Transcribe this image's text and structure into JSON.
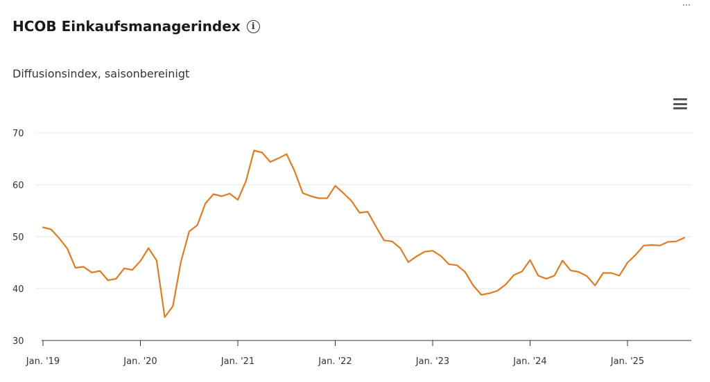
{
  "header": {
    "title": "HCOB Einkaufsmanagerindex",
    "info_icon": "info-icon",
    "subtitle": "Diffusionsindex, saisonbereinigt",
    "menu_icon": "hamburger-menu-icon"
  },
  "chart_data": {
    "type": "line",
    "title": "HCOB Einkaufsmanagerindex",
    "subtitle": "Diffusionsindex, saisonbereinigt",
    "xlabel": "",
    "ylabel": "",
    "ylim": [
      30,
      70
    ],
    "yticks": [
      30,
      40,
      50,
      60,
      70
    ],
    "xticks": [
      "Jan. '19",
      "Jan. '20",
      "Jan. '21",
      "Jan. '22",
      "Jan. '23",
      "Jan. '24",
      "Jan. '25"
    ],
    "grid": true,
    "legend": "none",
    "x_start": "2019-01",
    "series": [
      {
        "color": "#e07b24",
        "values": [
          51.8,
          51.4,
          49.7,
          47.7,
          44.0,
          44.2,
          43.1,
          43.4,
          41.6,
          41.9,
          43.9,
          43.6,
          45.3,
          47.8,
          45.4,
          34.5,
          36.6,
          45.2,
          51.0,
          52.2,
          56.4,
          58.2,
          57.8,
          58.3,
          57.1,
          60.7,
          66.6,
          66.2,
          64.4,
          65.1,
          65.9,
          62.6,
          58.4,
          57.8,
          57.4,
          57.4,
          59.8,
          58.4,
          56.9,
          54.6,
          54.8,
          52.0,
          49.3,
          49.1,
          47.8,
          45.1,
          46.2,
          47.1,
          47.3,
          46.3,
          44.7,
          44.5,
          43.2,
          40.6,
          38.8,
          39.1,
          39.6,
          40.8,
          42.6,
          43.3,
          45.5,
          42.5,
          41.9,
          42.5,
          45.4,
          43.5,
          43.2,
          42.4,
          40.6,
          43.0,
          43.0,
          42.5,
          45.0,
          46.5,
          48.3,
          48.4,
          48.3,
          49.0,
          49.1,
          49.8
        ]
      }
    ]
  }
}
